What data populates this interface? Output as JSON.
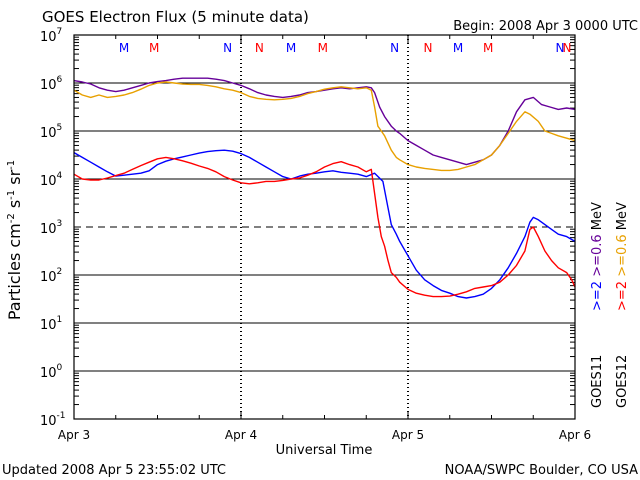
{
  "chart_data": {
    "type": "line",
    "title": "GOES Electron Flux (5 minute data)",
    "begin_text": "Begin: 2008 Apr 3 0000 UTC",
    "xlabel": "Universal Time",
    "ylabel_main": "Particles cm",
    "ylabel_sup1": "-2",
    "ylabel_s": "s",
    "ylabel_sup2": "-1",
    "ylabel_sr": "sr",
    "ylabel_sup3": "-1",
    "updated_text": "Updated 2008 Apr  5 23:55:02 UTC",
    "credit_text": "NOAA/SWPC Boulder, CO USA",
    "x_unit": "days since 2008 Apr 3 0000 UTC",
    "xlim": [
      0,
      3
    ],
    "x_ticks": [
      {
        "x": 0,
        "label": "Apr 3"
      },
      {
        "x": 1,
        "label": "Apr 4"
      },
      {
        "x": 2,
        "label": "Apr 5"
      },
      {
        "x": 3,
        "label": "Apr 6"
      }
    ],
    "y_scale": "log",
    "ylim_exp": [
      -1,
      7
    ],
    "y_tick_base": "10",
    "y_ticks": [
      {
        "exp": 7,
        "label": "7"
      },
      {
        "exp": 6,
        "label": "6"
      },
      {
        "exp": 5,
        "label": "5"
      },
      {
        "exp": 4,
        "label": "4"
      },
      {
        "exp": 3,
        "label": "3"
      },
      {
        "exp": 2,
        "label": "2"
      },
      {
        "exp": 1,
        "label": "1"
      },
      {
        "exp": 0,
        "label": "0"
      },
      {
        "exp": -1,
        "label": "-1"
      }
    ],
    "thresholds": [
      {
        "exp": 3,
        "style": "dashed"
      }
    ],
    "markers": [
      {
        "x": 0.3,
        "label": "M",
        "color": "#0000ff"
      },
      {
        "x": 0.48,
        "label": "M",
        "color": "#ff0000"
      },
      {
        "x": 0.92,
        "label": "N",
        "color": "#0000ff"
      },
      {
        "x": 1.11,
        "label": "N",
        "color": "#ff0000"
      },
      {
        "x": 1.3,
        "label": "M",
        "color": "#0000ff"
      },
      {
        "x": 1.49,
        "label": "M",
        "color": "#ff0000"
      },
      {
        "x": 1.92,
        "label": "N",
        "color": "#0000ff"
      },
      {
        "x": 2.12,
        "label": "N",
        "color": "#ff0000"
      },
      {
        "x": 2.3,
        "label": "M",
        "color": "#0000ff"
      },
      {
        "x": 2.48,
        "label": "M",
        "color": "#ff0000"
      },
      {
        "x": 2.91,
        "label": "N",
        "color": "#0000ff"
      },
      {
        "x": 3.12,
        "label": "N",
        "color": "#ff0000"
      }
    ],
    "legend": [
      {
        "label": ">=2",
        "color": "#0000ff"
      },
      {
        "label": ">=0.6",
        "color": "#660099"
      },
      {
        "label": "MeV",
        "color": "#000000"
      },
      {
        "label": ">=2",
        "color": "#ff0000"
      },
      {
        "label": ">=0.6",
        "color": "#e8a000"
      },
      {
        "label": "MeV",
        "color": "#000000"
      },
      {
        "label": "GOES11",
        "color": "#000000"
      },
      {
        "label": "GOES12",
        "color": "#000000"
      }
    ],
    "series": [
      {
        "color": "#0000ff",
        "points": [
          [
            0,
            4.55
          ],
          [
            0.05,
            4.45
          ],
          [
            0.1,
            4.35
          ],
          [
            0.15,
            4.25
          ],
          [
            0.2,
            4.15
          ],
          [
            0.25,
            4.06
          ],
          [
            0.3,
            4.08
          ],
          [
            0.35,
            4.1
          ],
          [
            0.4,
            4.12
          ],
          [
            0.45,
            4.17
          ],
          [
            0.5,
            4.3
          ],
          [
            0.55,
            4.37
          ],
          [
            0.6,
            4.42
          ],
          [
            0.65,
            4.46
          ],
          [
            0.7,
            4.5
          ],
          [
            0.75,
            4.54
          ],
          [
            0.8,
            4.57
          ],
          [
            0.85,
            4.59
          ],
          [
            0.9,
            4.6
          ],
          [
            0.95,
            4.58
          ],
          [
            1.0,
            4.53
          ],
          [
            1.05,
            4.45
          ],
          [
            1.1,
            4.35
          ],
          [
            1.15,
            4.25
          ],
          [
            1.2,
            4.15
          ],
          [
            1.25,
            4.05
          ],
          [
            1.3,
            4.0
          ],
          [
            1.35,
            4.06
          ],
          [
            1.4,
            4.1
          ],
          [
            1.45,
            4.12
          ],
          [
            1.5,
            4.15
          ],
          [
            1.55,
            4.17
          ],
          [
            1.6,
            4.14
          ],
          [
            1.65,
            4.12
          ],
          [
            1.7,
            4.1
          ],
          [
            1.75,
            4.05
          ],
          [
            1.8,
            4.12
          ],
          [
            1.85,
            3.95
          ],
          [
            1.88,
            3.4
          ],
          [
            1.9,
            3.05
          ],
          [
            1.93,
            2.85
          ],
          [
            1.95,
            2.7
          ],
          [
            2.0,
            2.4
          ],
          [
            2.05,
            2.1
          ],
          [
            2.1,
            1.9
          ],
          [
            2.15,
            1.78
          ],
          [
            2.2,
            1.68
          ],
          [
            2.25,
            1.62
          ],
          [
            2.3,
            1.55
          ],
          [
            2.35,
            1.52
          ],
          [
            2.4,
            1.55
          ],
          [
            2.45,
            1.6
          ],
          [
            2.5,
            1.72
          ],
          [
            2.55,
            1.9
          ],
          [
            2.6,
            2.15
          ],
          [
            2.65,
            2.45
          ],
          [
            2.7,
            2.8
          ],
          [
            2.73,
            3.1
          ],
          [
            2.75,
            3.2
          ],
          [
            2.78,
            3.15
          ],
          [
            2.82,
            3.05
          ],
          [
            2.86,
            2.95
          ],
          [
            2.9,
            2.85
          ],
          [
            2.95,
            2.8
          ],
          [
            3.0,
            2.7
          ]
        ]
      },
      {
        "color": "#ff0000",
        "points": [
          [
            0,
            4.1
          ],
          [
            0.05,
            4.0
          ],
          [
            0.1,
            3.98
          ],
          [
            0.15,
            3.98
          ],
          [
            0.2,
            4.02
          ],
          [
            0.25,
            4.07
          ],
          [
            0.3,
            4.12
          ],
          [
            0.35,
            4.2
          ],
          [
            0.4,
            4.28
          ],
          [
            0.45,
            4.35
          ],
          [
            0.5,
            4.42
          ],
          [
            0.55,
            4.45
          ],
          [
            0.6,
            4.42
          ],
          [
            0.65,
            4.38
          ],
          [
            0.7,
            4.33
          ],
          [
            0.75,
            4.27
          ],
          [
            0.8,
            4.22
          ],
          [
            0.85,
            4.15
          ],
          [
            0.9,
            4.05
          ],
          [
            0.95,
            3.98
          ],
          [
            1.0,
            3.92
          ],
          [
            1.05,
            3.9
          ],
          [
            1.1,
            3.92
          ],
          [
            1.15,
            3.95
          ],
          [
            1.2,
            3.95
          ],
          [
            1.25,
            3.97
          ],
          [
            1.3,
            4.0
          ],
          [
            1.35,
            4.02
          ],
          [
            1.4,
            4.08
          ],
          [
            1.45,
            4.15
          ],
          [
            1.5,
            4.25
          ],
          [
            1.55,
            4.32
          ],
          [
            1.6,
            4.36
          ],
          [
            1.65,
            4.3
          ],
          [
            1.7,
            4.25
          ],
          [
            1.75,
            4.15
          ],
          [
            1.78,
            4.2
          ],
          [
            1.8,
            3.7
          ],
          [
            1.82,
            3.2
          ],
          [
            1.84,
            2.8
          ],
          [
            1.86,
            2.6
          ],
          [
            1.88,
            2.3
          ],
          [
            1.9,
            2.05
          ],
          [
            1.93,
            1.95
          ],
          [
            1.95,
            1.85
          ],
          [
            2.0,
            1.7
          ],
          [
            2.05,
            1.62
          ],
          [
            2.1,
            1.58
          ],
          [
            2.15,
            1.55
          ],
          [
            2.2,
            1.55
          ],
          [
            2.25,
            1.56
          ],
          [
            2.3,
            1.6
          ],
          [
            2.35,
            1.65
          ],
          [
            2.4,
            1.72
          ],
          [
            2.45,
            1.75
          ],
          [
            2.5,
            1.78
          ],
          [
            2.55,
            1.85
          ],
          [
            2.6,
            2.0
          ],
          [
            2.65,
            2.2
          ],
          [
            2.7,
            2.5
          ],
          [
            2.73,
            2.95
          ],
          [
            2.75,
            3.0
          ],
          [
            2.78,
            2.8
          ],
          [
            2.82,
            2.5
          ],
          [
            2.86,
            2.3
          ],
          [
            2.9,
            2.15
          ],
          [
            2.95,
            2.05
          ],
          [
            2.98,
            1.9
          ],
          [
            3.0,
            1.75
          ]
        ]
      },
      {
        "color": "#660099",
        "points": [
          [
            0,
            6.05
          ],
          [
            0.05,
            6.02
          ],
          [
            0.1,
            5.98
          ],
          [
            0.15,
            5.9
          ],
          [
            0.2,
            5.85
          ],
          [
            0.25,
            5.82
          ],
          [
            0.3,
            5.85
          ],
          [
            0.35,
            5.9
          ],
          [
            0.4,
            5.95
          ],
          [
            0.45,
            6.0
          ],
          [
            0.5,
            6.03
          ],
          [
            0.55,
            6.05
          ],
          [
            0.6,
            6.08
          ],
          [
            0.65,
            6.1
          ],
          [
            0.7,
            6.1
          ],
          [
            0.75,
            6.1
          ],
          [
            0.8,
            6.1
          ],
          [
            0.85,
            6.08
          ],
          [
            0.9,
            6.05
          ],
          [
            0.95,
            6.0
          ],
          [
            1.0,
            5.95
          ],
          [
            1.05,
            5.88
          ],
          [
            1.1,
            5.8
          ],
          [
            1.15,
            5.75
          ],
          [
            1.2,
            5.72
          ],
          [
            1.25,
            5.7
          ],
          [
            1.3,
            5.72
          ],
          [
            1.35,
            5.75
          ],
          [
            1.4,
            5.8
          ],
          [
            1.45,
            5.82
          ],
          [
            1.5,
            5.85
          ],
          [
            1.55,
            5.88
          ],
          [
            1.6,
            5.9
          ],
          [
            1.65,
            5.88
          ],
          [
            1.7,
            5.9
          ],
          [
            1.75,
            5.92
          ],
          [
            1.78,
            5.9
          ],
          [
            1.8,
            5.8
          ],
          [
            1.83,
            5.5
          ],
          [
            1.86,
            5.3
          ],
          [
            1.9,
            5.1
          ],
          [
            1.93,
            5.0
          ],
          [
            1.95,
            4.95
          ],
          [
            2.0,
            4.8
          ],
          [
            2.05,
            4.7
          ],
          [
            2.1,
            4.6
          ],
          [
            2.15,
            4.5
          ],
          [
            2.2,
            4.45
          ],
          [
            2.25,
            4.4
          ],
          [
            2.3,
            4.35
          ],
          [
            2.35,
            4.3
          ],
          [
            2.4,
            4.35
          ],
          [
            2.45,
            4.4
          ],
          [
            2.5,
            4.5
          ],
          [
            2.55,
            4.7
          ],
          [
            2.6,
            5.0
          ],
          [
            2.65,
            5.4
          ],
          [
            2.7,
            5.65
          ],
          [
            2.75,
            5.7
          ],
          [
            2.8,
            5.55
          ],
          [
            2.85,
            5.5
          ],
          [
            2.9,
            5.45
          ],
          [
            2.95,
            5.48
          ],
          [
            3.0,
            5.45
          ]
        ]
      },
      {
        "color": "#e8a000",
        "points": [
          [
            0,
            5.85
          ],
          [
            0.05,
            5.75
          ],
          [
            0.1,
            5.7
          ],
          [
            0.15,
            5.75
          ],
          [
            0.2,
            5.7
          ],
          [
            0.25,
            5.72
          ],
          [
            0.3,
            5.75
          ],
          [
            0.35,
            5.8
          ],
          [
            0.4,
            5.87
          ],
          [
            0.45,
            5.95
          ],
          [
            0.5,
            6.0
          ],
          [
            0.55,
            6.02
          ],
          [
            0.6,
            6.0
          ],
          [
            0.65,
            5.98
          ],
          [
            0.7,
            5.97
          ],
          [
            0.75,
            5.97
          ],
          [
            0.8,
            5.95
          ],
          [
            0.85,
            5.92
          ],
          [
            0.9,
            5.88
          ],
          [
            0.95,
            5.85
          ],
          [
            1.0,
            5.8
          ],
          [
            1.05,
            5.72
          ],
          [
            1.1,
            5.68
          ],
          [
            1.15,
            5.66
          ],
          [
            1.2,
            5.65
          ],
          [
            1.25,
            5.66
          ],
          [
            1.3,
            5.68
          ],
          [
            1.35,
            5.72
          ],
          [
            1.4,
            5.78
          ],
          [
            1.45,
            5.82
          ],
          [
            1.5,
            5.87
          ],
          [
            1.55,
            5.9
          ],
          [
            1.6,
            5.92
          ],
          [
            1.65,
            5.9
          ],
          [
            1.7,
            5.88
          ],
          [
            1.75,
            5.9
          ],
          [
            1.78,
            5.85
          ],
          [
            1.8,
            5.5
          ],
          [
            1.82,
            5.1
          ],
          [
            1.84,
            5.0
          ],
          [
            1.86,
            4.9
          ],
          [
            1.9,
            4.6
          ],
          [
            1.93,
            4.45
          ],
          [
            1.95,
            4.4
          ],
          [
            2.0,
            4.3
          ],
          [
            2.05,
            4.25
          ],
          [
            2.1,
            4.22
          ],
          [
            2.15,
            4.2
          ],
          [
            2.2,
            4.18
          ],
          [
            2.25,
            4.18
          ],
          [
            2.3,
            4.2
          ],
          [
            2.35,
            4.25
          ],
          [
            2.4,
            4.3
          ],
          [
            2.45,
            4.4
          ],
          [
            2.5,
            4.5
          ],
          [
            2.55,
            4.7
          ],
          [
            2.6,
            4.95
          ],
          [
            2.65,
            5.2
          ],
          [
            2.7,
            5.4
          ],
          [
            2.73,
            5.35
          ],
          [
            2.78,
            5.2
          ],
          [
            2.82,
            5.0
          ],
          [
            2.86,
            4.95
          ],
          [
            2.9,
            4.9
          ],
          [
            2.95,
            4.85
          ],
          [
            3.0,
            4.8
          ]
        ]
      }
    ]
  }
}
